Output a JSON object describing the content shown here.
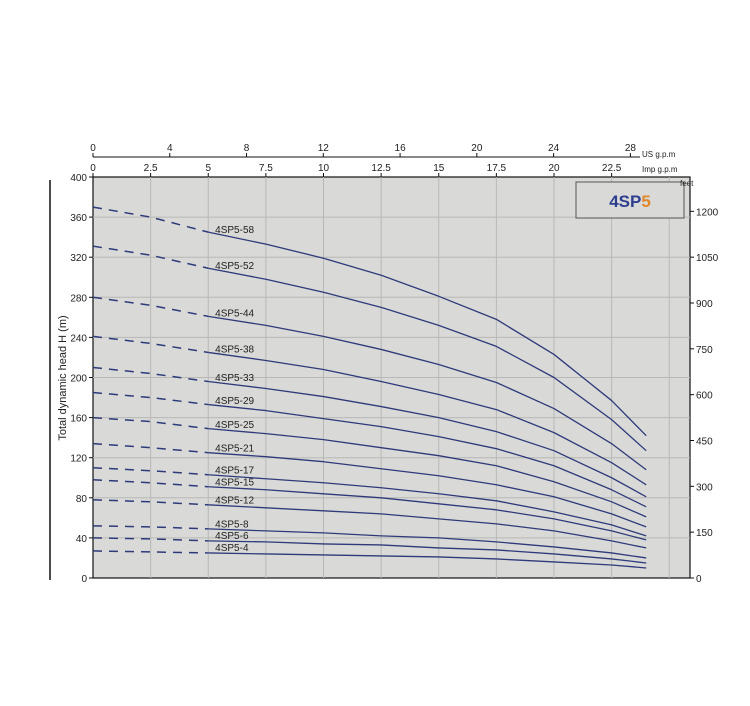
{
  "chart_data": {
    "type": "line",
    "title": "4SP5",
    "title_parts": {
      "prefix": "4SP",
      "suffix": "5"
    },
    "colors": {
      "series": "#2e3a7a",
      "title_prefix": "#2e3f8f",
      "title_suffix": "#e0882a",
      "plot_bg": "#d9d9d7",
      "grid": "#b8b8b6"
    },
    "ylabel": "Total dynamic head H (m)",
    "ylim": [
      0,
      400
    ],
    "yticks": [
      0,
      40,
      80,
      120,
      160,
      200,
      240,
      280,
      320,
      360,
      400
    ],
    "y2label": "feet",
    "y2ticks": [
      0,
      150,
      300,
      450,
      600,
      750,
      900,
      1050,
      1200
    ],
    "x_top_label": "US g.p.m",
    "x_top_ticks": [
      0,
      4,
      8,
      12,
      16,
      20,
      24,
      28
    ],
    "xlabel": "Imp g.p.m",
    "xticks": [
      0,
      2.5,
      5,
      7.5,
      10,
      12.5,
      15,
      17.5,
      20,
      22.5
    ],
    "xlim": [
      0,
      25.9
    ],
    "grid": true,
    "dashed_until_x": 5,
    "x": [
      0,
      2.5,
      5,
      7.5,
      10,
      12.5,
      15,
      17.5,
      20,
      22.5,
      24
    ],
    "series": [
      {
        "name": "4SP5-58",
        "values": [
          370,
          360,
          345,
          333,
          319,
          302,
          281,
          258,
          223,
          177,
          142
        ]
      },
      {
        "name": "4SP5-52",
        "values": [
          331,
          322,
          309,
          298,
          285,
          270,
          252,
          231,
          200,
          158,
          127
        ]
      },
      {
        "name": "4SP5-44",
        "values": [
          280,
          272,
          261,
          252,
          241,
          228,
          213,
          195,
          169,
          134,
          108
        ]
      },
      {
        "name": "4SP5-38",
        "values": [
          241,
          234,
          225,
          217,
          208,
          196,
          183,
          168,
          145,
          115,
          93
        ]
      },
      {
        "name": "4SP5-33",
        "values": [
          210,
          204,
          196,
          189,
          181,
          171,
          160,
          146,
          127,
          100,
          81
        ]
      },
      {
        "name": "4SP5-29",
        "values": [
          185,
          180,
          173,
          167,
          159,
          151,
          141,
          129,
          112,
          88,
          71
        ]
      },
      {
        "name": "4SP5-25",
        "values": [
          160,
          156,
          149,
          144,
          138,
          130,
          122,
          112,
          96,
          76,
          61
        ]
      },
      {
        "name": "4SP5-21",
        "values": [
          134,
          130,
          125,
          121,
          116,
          109,
          102,
          93,
          81,
          64,
          51
        ]
      },
      {
        "name": "4SP5-17",
        "values": [
          110,
          107,
          103,
          99,
          95,
          90,
          84,
          77,
          66,
          53,
          42
        ]
      },
      {
        "name": "4SP5-15",
        "values": [
          98,
          95,
          91,
          88,
          84,
          80,
          74,
          68,
          59,
          47,
          38
        ]
      },
      {
        "name": "4SP5-12",
        "values": [
          78,
          76,
          73,
          70,
          67,
          64,
          59,
          54,
          47,
          37,
          30
        ]
      },
      {
        "name": "4SP5-8",
        "values": [
          52,
          51,
          49,
          47,
          45,
          42,
          40,
          36,
          31,
          25,
          20
        ]
      },
      {
        "name": "4SP5-6",
        "values": [
          40,
          39,
          37,
          36,
          34,
          33,
          30,
          28,
          24,
          19,
          15
        ]
      },
      {
        "name": "4SP5-4",
        "values": [
          27,
          26,
          25,
          24,
          23,
          22,
          21,
          19,
          16,
          13,
          10
        ]
      }
    ]
  }
}
